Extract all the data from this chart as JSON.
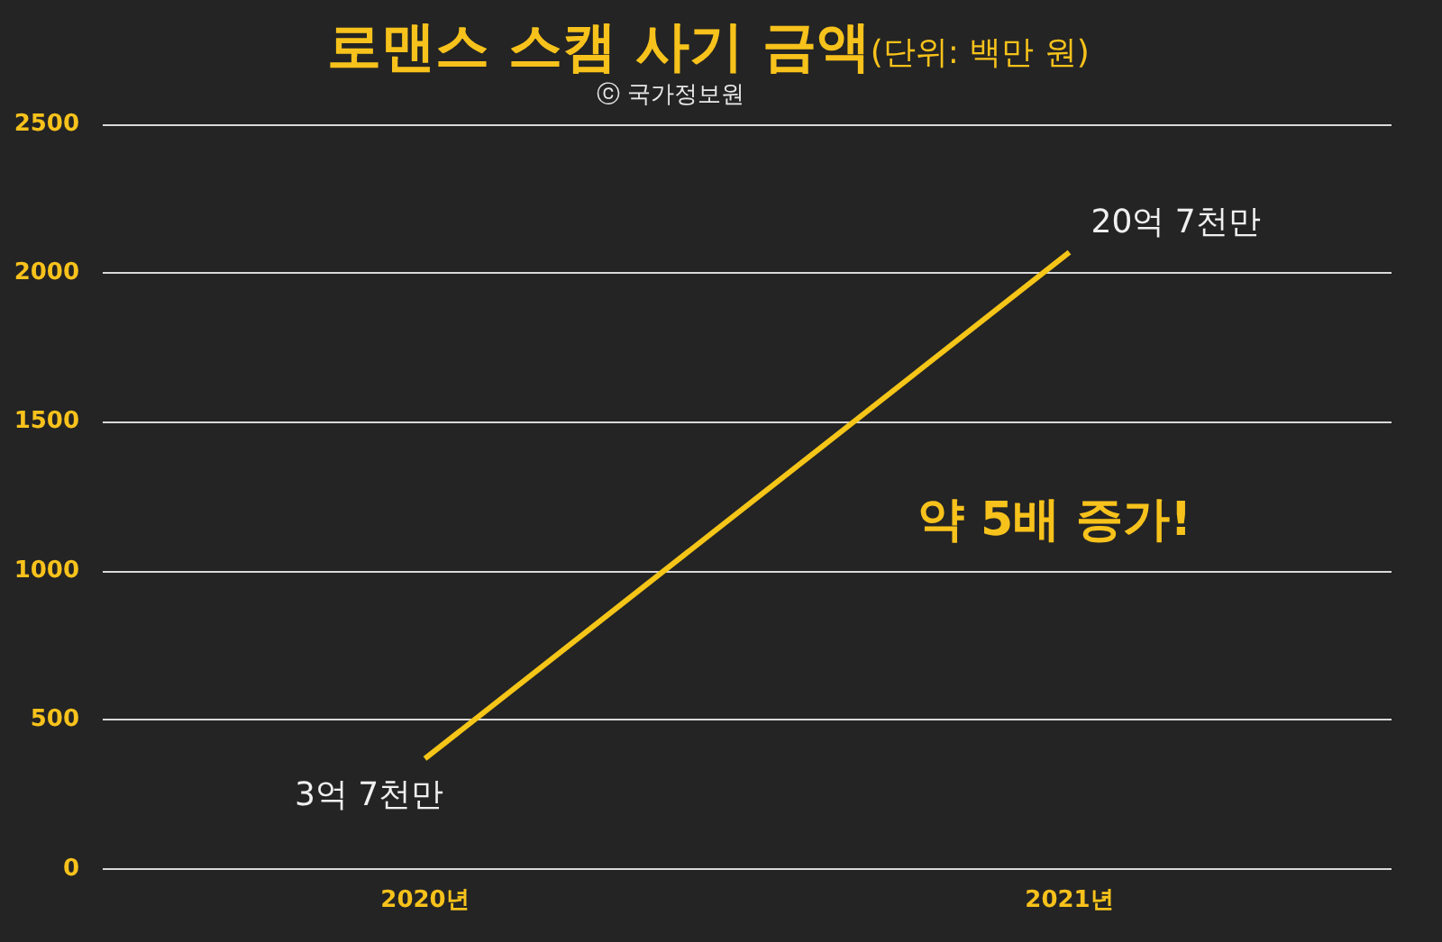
{
  "chart_data": {
    "type": "line",
    "title": "로맨스 스캠 사기 금액",
    "subtitle": "(단위: 백만 원)",
    "annotations": [
      "ⓒ 국가정보원",
      "약 5배 증가!",
      {
        "text": "3억 7천만",
        "x": "2020년",
        "y": 370
      },
      {
        "text": "20억 7천만",
        "x": "2021년",
        "y": 2070
      }
    ],
    "categories": [
      "2020년",
      "2021년"
    ],
    "series": [
      {
        "color": "#f5c518",
        "values": [
          370,
          2070
        ]
      }
    ],
    "ylim": [
      0,
      2500
    ],
    "yticks": [
      0,
      500,
      1000,
      1500,
      2000,
      2500
    ],
    "grid": "y",
    "legend": false,
    "marker": "none",
    "line_style": "solid"
  }
}
